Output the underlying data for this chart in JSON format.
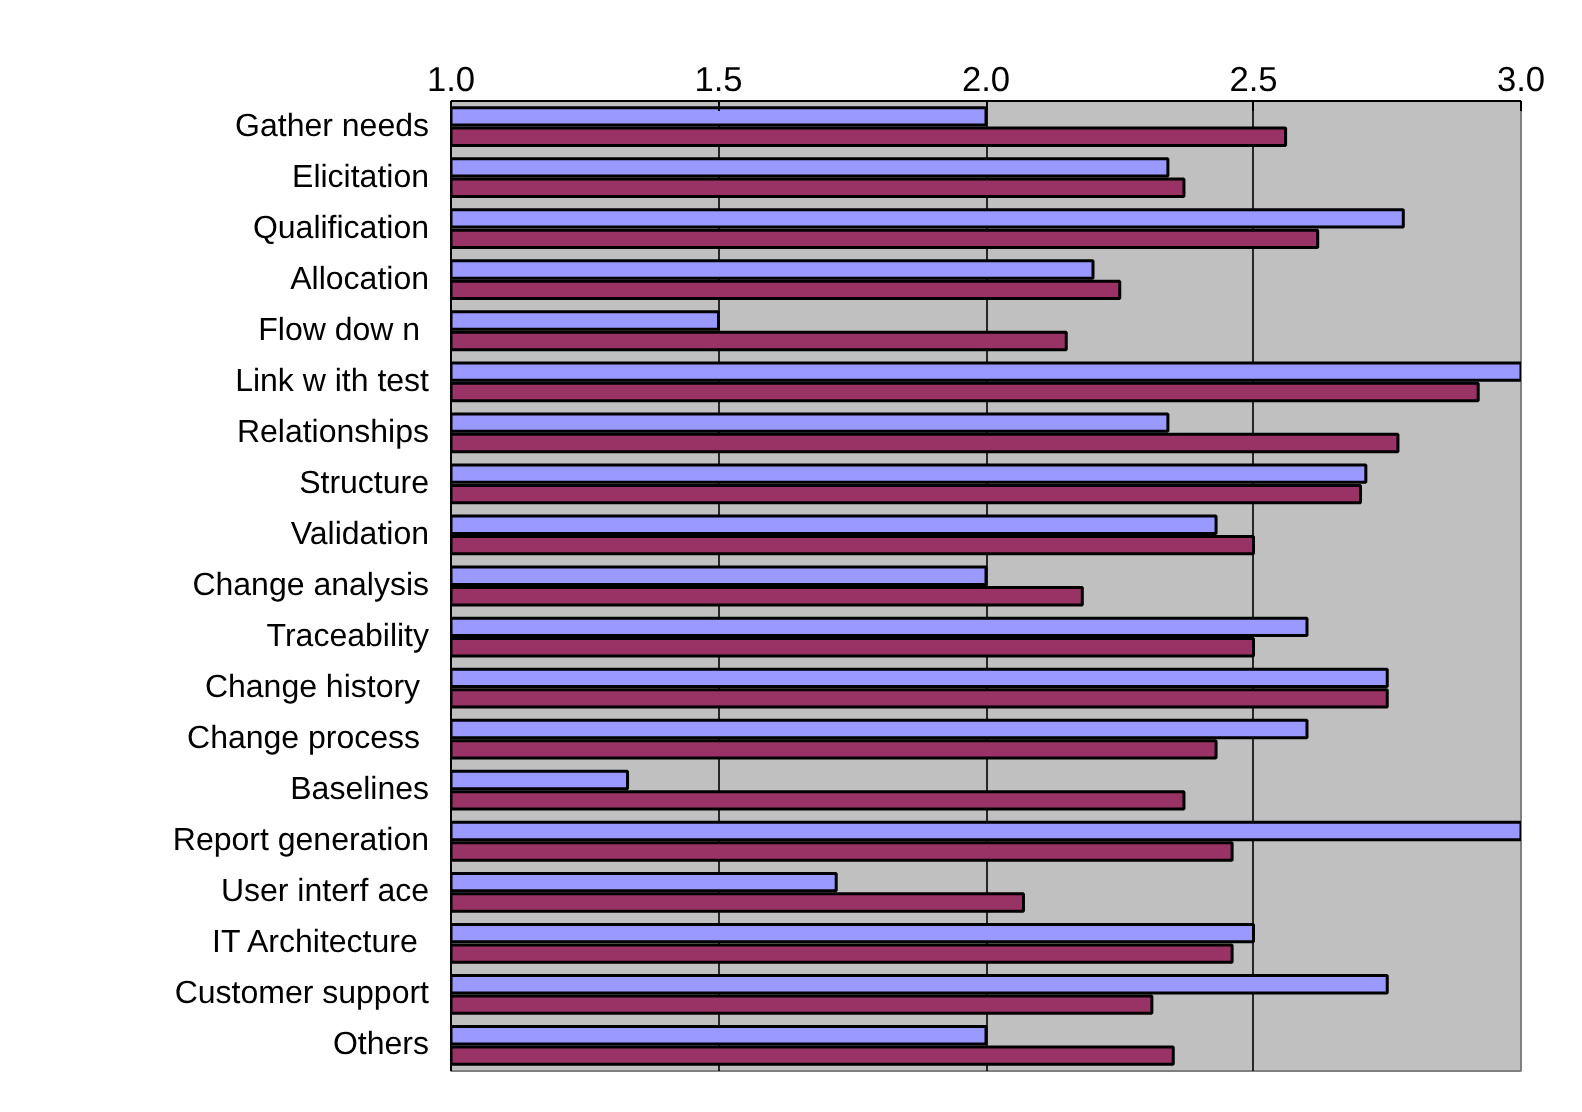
{
  "chart_data": {
    "type": "bar",
    "orientation": "horizontal",
    "categories": [
      "Gather needs",
      "Elicitation",
      "Qualification",
      "Allocation",
      "Flow  dow n",
      "Link w ith test",
      "Relationships",
      "Structure",
      "Validation",
      "Change analysis",
      "Traceability",
      "Change history ",
      "Change process ",
      "Baselines",
      "Report generation",
      "User interf ace",
      "IT Architecture ",
      "Customer support",
      "Others"
    ],
    "series": [
      {
        "color": "#9999ff",
        "values": [
          2.0,
          2.34,
          2.78,
          2.2,
          1.5,
          3.0,
          2.34,
          2.71,
          2.43,
          2.0,
          2.6,
          2.75,
          2.6,
          1.33,
          3.0,
          1.72,
          2.5,
          2.75,
          2.0
        ]
      },
      {
        "color": "#993366",
        "values": [
          2.56,
          2.37,
          2.62,
          2.25,
          2.15,
          2.92,
          2.77,
          2.7,
          2.5,
          2.18,
          2.5,
          2.75,
          2.43,
          2.37,
          2.46,
          2.07,
          2.46,
          2.31,
          2.35
        ]
      }
    ],
    "xlim": [
      1.0,
      3.0
    ],
    "xticks": [
      {
        "value": 1.0,
        "label": "1.0"
      },
      {
        "value": 1.5,
        "label": "1.5"
      },
      {
        "value": 2.0,
        "label": "2.0"
      },
      {
        "value": 2.5,
        "label": "2.5"
      },
      {
        "value": 3.0,
        "label": "3.0"
      }
    ],
    "grid": "x"
  }
}
